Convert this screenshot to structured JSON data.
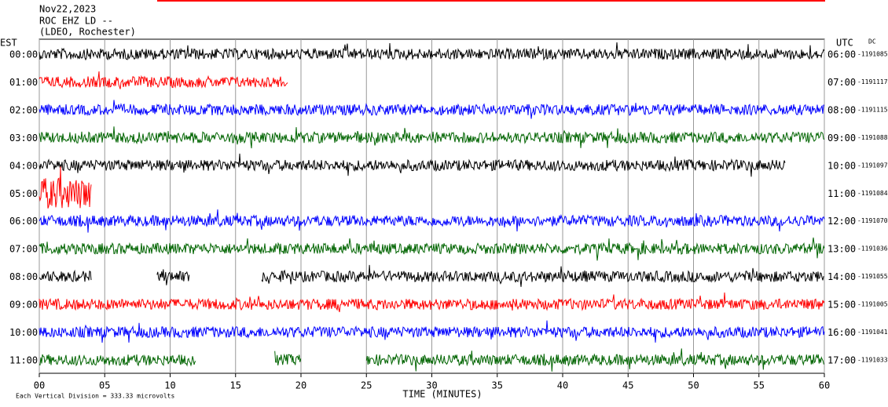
{
  "chart_data": {
    "type": "helicorder",
    "title_lines": [
      "Nov22,2023",
      "ROC EHZ LD --",
      "(LDEO, Rochester)"
    ],
    "left_axis_label": "EST",
    "right_axis_label": "UTC",
    "dc_label": "DC",
    "xlabel": "TIME (MINUTES)",
    "scale_note": "Each Vertical Division =  333.33 microvolts",
    "xlim": [
      0,
      60
    ],
    "xticks": [
      {
        "value": 0,
        "label": "00"
      },
      {
        "value": 5,
        "label": "05"
      },
      10,
      15,
      20,
      25,
      30,
      35,
      40,
      45,
      50,
      55,
      60
    ],
    "rows": [
      {
        "est": "00:00",
        "utc": "06:00",
        "dc": "-1191085",
        "color": "#000000",
        "segments": [
          [
            0,
            60
          ]
        ]
      },
      {
        "est": "01:00",
        "utc": "07:00",
        "dc": "-1191117",
        "color": "#ff0000",
        "segments": [
          [
            0,
            19
          ]
        ]
      },
      {
        "est": "02:00",
        "utc": "08:00",
        "dc": "-1191115",
        "color": "#0000ff",
        "segments": [
          [
            0,
            60
          ]
        ]
      },
      {
        "est": "03:00",
        "utc": "09:00",
        "dc": "-1191088",
        "color": "#006400",
        "segments": [
          [
            0,
            60
          ]
        ]
      },
      {
        "est": "04:00",
        "utc": "10:00",
        "dc": "-1191097",
        "color": "#000000",
        "segments": [
          [
            0,
            57
          ]
        ]
      },
      {
        "est": "05:00",
        "utc": "11:00",
        "dc": "-1191084",
        "color": "#ff0000",
        "segments": [
          [
            0,
            4
          ]
        ]
      },
      {
        "est": "06:00",
        "utc": "12:00",
        "dc": "-1191070",
        "color": "#0000ff",
        "segments": [
          [
            0,
            60
          ]
        ]
      },
      {
        "est": "07:00",
        "utc": "13:00",
        "dc": "-1191036",
        "color": "#006400",
        "segments": [
          [
            0,
            60
          ]
        ]
      },
      {
        "est": "08:00",
        "utc": "14:00",
        "dc": "-1191055",
        "color": "#000000",
        "segments": [
          [
            0,
            4
          ],
          [
            9,
            11.5
          ],
          [
            17,
            60
          ]
        ]
      },
      {
        "est": "09:00",
        "utc": "15:00",
        "dc": "-1191005",
        "color": "#ff0000",
        "segments": [
          [
            0,
            60
          ]
        ]
      },
      {
        "est": "10:00",
        "utc": "16:00",
        "dc": "-1191041",
        "color": "#0000ff",
        "segments": [
          [
            0,
            60
          ]
        ]
      },
      {
        "est": "11:00",
        "utc": "17:00",
        "dc": "-1191033",
        "color": "#006400",
        "segments": [
          [
            0,
            12
          ],
          [
            18,
            20
          ],
          [
            25,
            60
          ]
        ]
      }
    ]
  }
}
